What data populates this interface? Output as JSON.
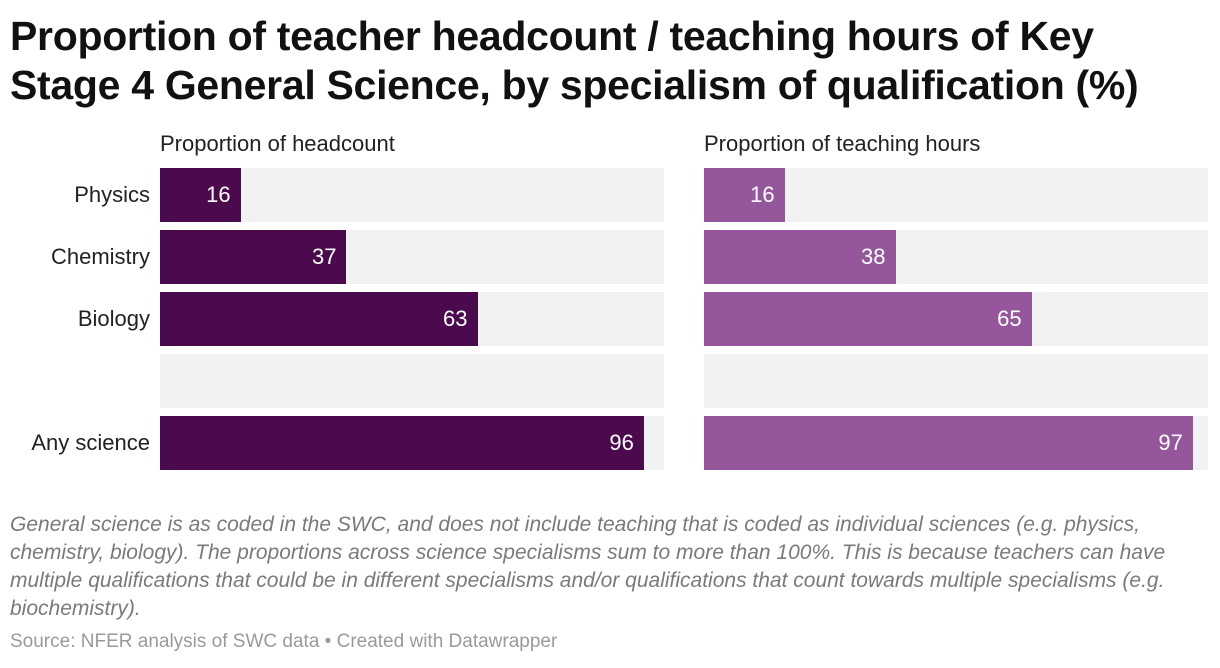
{
  "title": "Proportion of teacher headcount / teaching hours of Key Stage 4 General Science, by specialism of qualification (%)",
  "notes": "General science is as coded in the SWC, and does not include teaching that is coded as individual sciences (e.g. physics, chemistry, biology). The proportions across science specialisms sum to more than 100%. This is because teachers can have multiple qualifications that could be in different specialisms and/or qualifications that count towards multiple specialisms (e.g. biochemistry).",
  "source": "Source: NFER analysis of SWC data • Created with Datawrapper",
  "colors": {
    "headcount": "#4a0a4d",
    "teaching_hours": "#95569c",
    "track": "#f2f2f2"
  },
  "chart_data": {
    "type": "bar",
    "orientation": "horizontal",
    "categories": [
      "Physics",
      "Chemistry",
      "Biology",
      "",
      "Any science"
    ],
    "xlim": [
      0,
      100
    ],
    "series": [
      {
        "name": "Proportion of headcount",
        "values": [
          16,
          37,
          63,
          null,
          96
        ]
      },
      {
        "name": "Proportion of teaching hours",
        "values": [
          16,
          38,
          65,
          null,
          97
        ]
      }
    ]
  }
}
